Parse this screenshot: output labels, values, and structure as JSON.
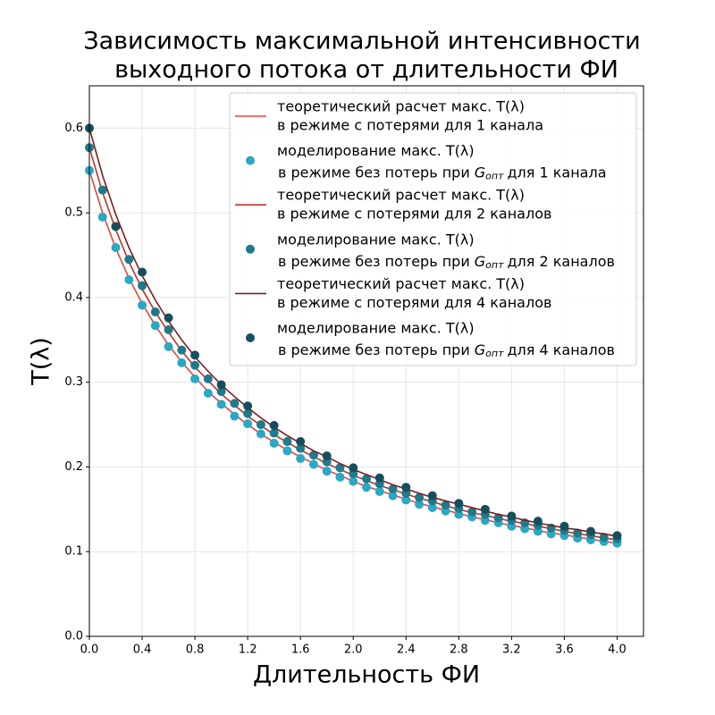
{
  "chart_data": {
    "type": "line",
    "title": [
      "Зависимость максимальной интенсивности",
      "выходного потока от длительности ФИ"
    ],
    "xlabel": "Длительность ФИ",
    "ylabel": "T(λ)",
    "xlim": [
      0,
      4.2
    ],
    "ylim": [
      0,
      0.65
    ],
    "xticks": [
      {
        "value": 0,
        "label": "0.0"
      },
      0.4,
      0.8,
      1.2,
      1.6,
      {
        "value": 2,
        "label": "2.0"
      },
      2.4,
      2.8,
      3.2,
      3.6,
      {
        "value": 4,
        "label": "4.0"
      }
    ],
    "yticks": [
      {
        "value": 0,
        "label": "0.0"
      },
      0.1,
      0.2,
      0.3,
      0.4,
      0.5,
      0.6
    ],
    "grid": true,
    "legend": "upper right",
    "series": [
      {
        "name": [
          "теоретический расчет макс. T(λ)",
          "в режиме с потерями для 1 канала"
        ],
        "type": "line",
        "color": "#e8453c",
        "x": [
          0,
          0.1,
          0.2,
          0.3,
          0.4,
          0.5,
          0.6,
          0.7,
          0.8,
          0.9,
          1,
          1.1,
          1.2,
          1.3,
          1.4,
          1.5,
          1.6,
          1.7,
          1.8,
          1.9,
          2,
          2.1,
          2.2,
          2.3,
          2.4,
          2.5,
          2.6,
          2.7,
          2.8,
          2.9,
          3,
          3.1,
          3.2,
          3.3,
          3.4,
          3.5,
          3.6,
          3.7,
          3.8,
          3.9,
          4
        ],
        "values": [
          0.55,
          0.5,
          0.458,
          0.423,
          0.393,
          0.367,
          0.344,
          0.324,
          0.306,
          0.289,
          0.275,
          0.262,
          0.25,
          0.239,
          0.229,
          0.22,
          0.212,
          0.204,
          0.196,
          0.19,
          0.183,
          0.177,
          0.172,
          0.167,
          0.162,
          0.157,
          0.153,
          0.149,
          0.145,
          0.141,
          0.138,
          0.134,
          0.131,
          0.128,
          0.125,
          0.122,
          0.12,
          0.117,
          0.115,
          0.112,
          0.11
        ]
      },
      {
        "name": [
          "моделирование макс. T(λ)",
          "в режиме без потерь при",
          "G",
          "опт",
          "для 1 канала"
        ],
        "type": "scatter",
        "color": "#2aa8c4",
        "x": [
          0,
          0.1,
          0.2,
          0.3,
          0.4,
          0.5,
          0.6,
          0.7,
          0.8,
          0.9,
          1,
          1.1,
          1.2,
          1.3,
          1.4,
          1.5,
          1.6,
          1.7,
          1.8,
          1.9,
          2,
          2.1,
          2.2,
          2.3,
          2.4,
          2.5,
          2.6,
          2.7,
          2.8,
          2.9,
          3,
          3.1,
          3.2,
          3.3,
          3.4,
          3.5,
          3.6,
          3.7,
          3.8,
          3.9,
          4
        ],
        "values": [
          0.55,
          0.495,
          0.459,
          0.421,
          0.391,
          0.367,
          0.342,
          0.323,
          0.304,
          0.287,
          0.274,
          0.26,
          0.251,
          0.239,
          0.228,
          0.219,
          0.21,
          0.203,
          0.195,
          0.188,
          0.183,
          0.176,
          0.171,
          0.166,
          0.161,
          0.156,
          0.152,
          0.148,
          0.144,
          0.141,
          0.137,
          0.134,
          0.13,
          0.127,
          0.124,
          0.121,
          0.119,
          0.116,
          0.114,
          0.112,
          0.11
        ]
      },
      {
        "name": [
          "теоретический расчет макс. T(λ)",
          "в режиме с потерями для 2 каналов"
        ],
        "type": "line",
        "color": "#c0302a",
        "x": [
          0,
          0.1,
          0.2,
          0.3,
          0.4,
          0.5,
          0.6,
          0.7,
          0.8,
          0.9,
          1,
          1.1,
          1.2,
          1.3,
          1.4,
          1.5,
          1.6,
          1.7,
          1.8,
          1.9,
          2,
          2.1,
          2.2,
          2.3,
          2.4,
          2.5,
          2.6,
          2.7,
          2.8,
          2.9,
          3,
          3.1,
          3.2,
          3.3,
          3.4,
          3.5,
          3.6,
          3.7,
          3.8,
          3.9,
          4
        ],
        "values": [
          0.577,
          0.524,
          0.48,
          0.442,
          0.41,
          0.383,
          0.359,
          0.337,
          0.318,
          0.302,
          0.286,
          0.273,
          0.26,
          0.249,
          0.238,
          0.229,
          0.22,
          0.212,
          0.204,
          0.197,
          0.19,
          0.184,
          0.178,
          0.173,
          0.168,
          0.163,
          0.159,
          0.154,
          0.15,
          0.146,
          0.143,
          0.139,
          0.136,
          0.133,
          0.13,
          0.127,
          0.124,
          0.121,
          0.119,
          0.116,
          0.114
        ]
      },
      {
        "name": [
          "моделирование макс. T(λ)",
          "в режиме без потерь при",
          "G",
          "опт",
          "для 2 каналов"
        ],
        "type": "scatter",
        "color": "#1f7a8a",
        "x": [
          0,
          0.1,
          0.2,
          0.3,
          0.4,
          0.5,
          0.6,
          0.7,
          0.8,
          0.9,
          1,
          1.1,
          1.2,
          1.3,
          1.4,
          1.5,
          1.6,
          1.7,
          1.8,
          1.9,
          2,
          2.1,
          2.2,
          2.3,
          2.4,
          2.5,
          2.6,
          2.7,
          2.8,
          2.9,
          3,
          3.1,
          3.2,
          3.3,
          3.4,
          3.5,
          3.6,
          3.7,
          3.8,
          3.9,
          4
        ],
        "values": [
          0.577,
          0.527,
          0.484,
          0.445,
          0.414,
          0.383,
          0.362,
          0.338,
          0.32,
          0.304,
          0.289,
          0.275,
          0.263,
          0.25,
          0.24,
          0.23,
          0.222,
          0.214,
          0.206,
          0.199,
          0.192,
          0.186,
          0.18,
          0.174,
          0.169,
          0.164,
          0.16,
          0.155,
          0.151,
          0.147,
          0.144,
          0.14,
          0.137,
          0.134,
          0.131,
          0.128,
          0.125,
          0.122,
          0.12,
          0.117,
          0.115
        ]
      },
      {
        "name": [
          "теоретический расчет макс. T(λ)",
          "в режиме с потерями для 4 каналов"
        ],
        "type": "line",
        "color": "#7b1c1c",
        "x": [
          0,
          0.1,
          0.2,
          0.3,
          0.4,
          0.5,
          0.6,
          0.7,
          0.8,
          0.9,
          1,
          1.1,
          1.2,
          1.3,
          1.4,
          1.5,
          1.6,
          1.7,
          1.8,
          1.9,
          2,
          2.1,
          2.2,
          2.3,
          2.4,
          2.5,
          2.6,
          2.7,
          2.8,
          2.9,
          3,
          3.1,
          3.2,
          3.3,
          3.4,
          3.5,
          3.6,
          3.7,
          3.8,
          3.9,
          4
        ],
        "values": [
          0.6,
          0.544,
          0.498,
          0.459,
          0.426,
          0.397,
          0.372,
          0.35,
          0.33,
          0.313,
          0.297,
          0.283,
          0.27,
          0.258,
          0.247,
          0.237,
          0.228,
          0.219,
          0.212,
          0.204,
          0.197,
          0.191,
          0.185,
          0.179,
          0.174,
          0.169,
          0.164,
          0.16,
          0.156,
          0.152,
          0.148,
          0.144,
          0.141,
          0.137,
          0.134,
          0.131,
          0.128,
          0.126,
          0.123,
          0.121,
          0.118
        ]
      },
      {
        "name": [
          "моделирование макс. T(λ)",
          "в режиме без потерь при",
          "G",
          "опт",
          "для 4 каналов"
        ],
        "type": "scatter",
        "color": "#164e5e",
        "x": [
          0,
          0.2,
          0.4,
          0.6,
          0.8,
          1,
          1.2,
          1.4,
          1.6,
          1.8,
          2,
          2.2,
          2.4,
          2.6,
          2.8,
          3,
          3.2,
          3.4,
          3.6,
          3.8,
          4
        ],
        "values": [
          0.6,
          0.484,
          0.43,
          0.376,
          0.332,
          0.297,
          0.272,
          0.249,
          0.23,
          0.213,
          0.199,
          0.187,
          0.176,
          0.166,
          0.157,
          0.15,
          0.142,
          0.136,
          0.13,
          0.124,
          0.119
        ]
      }
    ]
  }
}
